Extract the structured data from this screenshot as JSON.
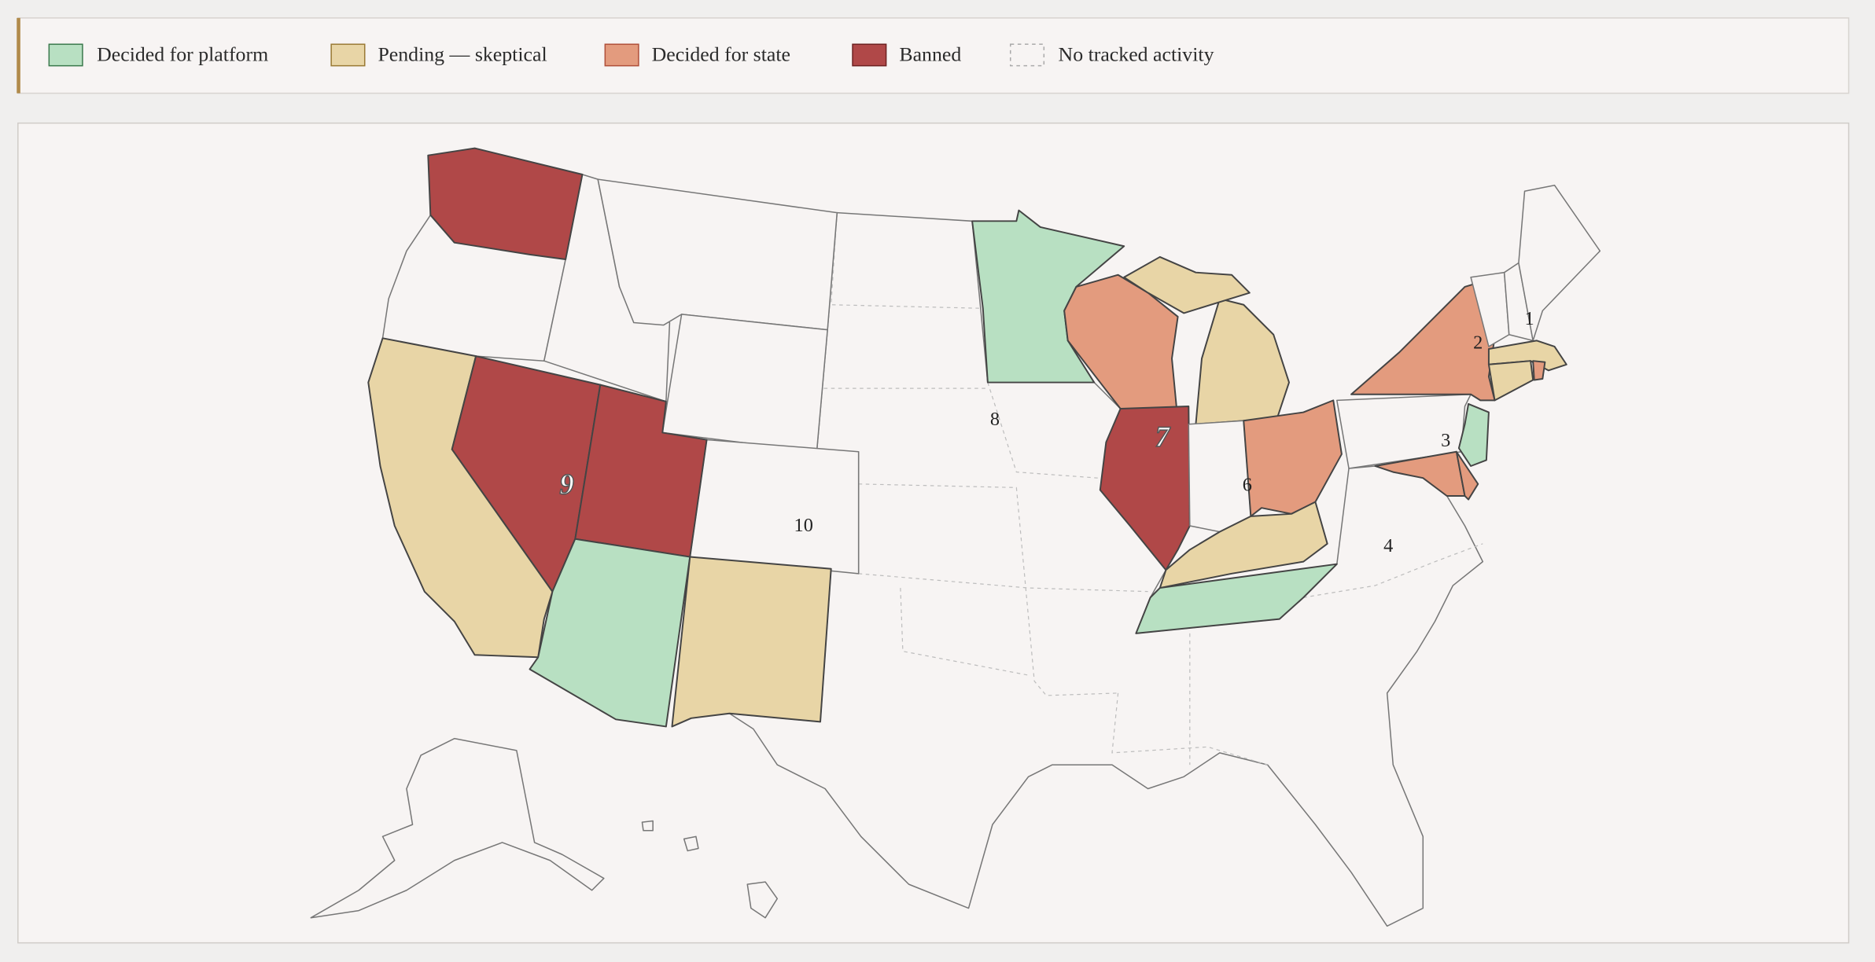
{
  "legend": {
    "items": [
      {
        "label": "Decided for platform"
      },
      {
        "label": "Pending — skeptical"
      },
      {
        "label": "Decided for state"
      },
      {
        "label": "Banned"
      },
      {
        "label": "No tracked activity"
      }
    ]
  },
  "map": {
    "labels": [
      "1",
      "2",
      "3",
      "4",
      "6",
      "7",
      "8",
      "9",
      "10"
    ]
  }
}
